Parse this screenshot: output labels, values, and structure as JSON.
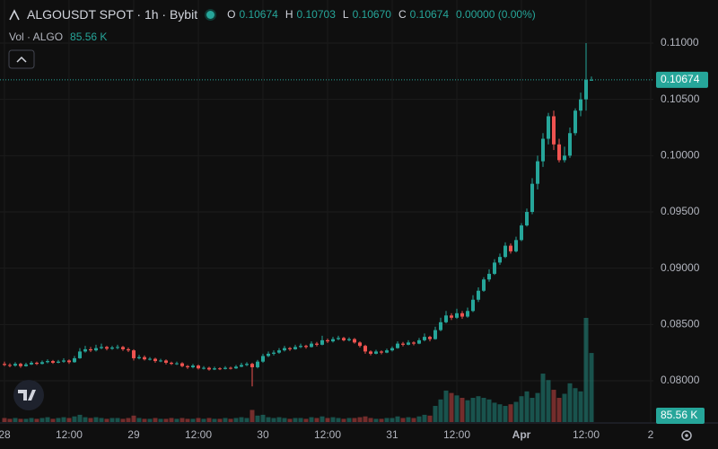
{
  "header": {
    "symbol": "ALGOUSDT SPOT · 1h · Bybit",
    "o_key": "O",
    "o": "0.10674",
    "h_key": "H",
    "h": "0.10703",
    "l_key": "L",
    "l": "0.10670",
    "c_key": "C",
    "c": "0.10674",
    "change": "0.00000 (0.00%)",
    "vol_title": "Vol · ALGO"
  },
  "chart_data": {
    "type": "candlestick",
    "colors": {
      "up": "#26a69a",
      "down": "#ef5350"
    },
    "grid": true,
    "volume_label": "85.56 K",
    "ylim": [
      0.07633,
      0.11383
    ],
    "yticks": [
      {
        "value": 0.08,
        "label": "0.08000"
      },
      {
        "value": 0.085,
        "label": "0.08500"
      },
      {
        "value": 0.09,
        "label": "0.09000"
      },
      {
        "value": 0.095,
        "label": "0.09500"
      },
      {
        "value": 0.1,
        "label": "0.10000"
      },
      {
        "value": 0.105,
        "label": "0.10500"
      },
      {
        "value": 0.11,
        "label": "0.11000"
      }
    ],
    "xlim": [
      -0.83,
      120.5
    ],
    "xticks": [
      {
        "value": 0,
        "label": "28"
      },
      {
        "value": 12,
        "label": "12:00"
      },
      {
        "value": 24,
        "label": "29"
      },
      {
        "value": 36,
        "label": "12:00"
      },
      {
        "value": 48,
        "label": "30"
      },
      {
        "value": 60,
        "label": "12:00"
      },
      {
        "value": 72,
        "label": "31"
      },
      {
        "value": 84,
        "label": "12:00"
      },
      {
        "value": 96,
        "label": "Apr"
      },
      {
        "value": 108,
        "label": "12:00"
      },
      {
        "value": 120,
        "label": "2"
      }
    ],
    "candles": [
      [
        0.0815,
        0.0817,
        0.0813,
        0.0814,
        5
      ],
      [
        0.0814,
        0.08155,
        0.0812,
        0.08135,
        4
      ],
      [
        0.08135,
        0.08165,
        0.08125,
        0.0815,
        5
      ],
      [
        0.0815,
        0.0816,
        0.08115,
        0.0813,
        4
      ],
      [
        0.0813,
        0.0816,
        0.08125,
        0.08145,
        4
      ],
      [
        0.08145,
        0.08175,
        0.0814,
        0.0816,
        5
      ],
      [
        0.0816,
        0.0817,
        0.0814,
        0.0815,
        4
      ],
      [
        0.0815,
        0.0818,
        0.08145,
        0.08165,
        5
      ],
      [
        0.08165,
        0.0819,
        0.08155,
        0.08175,
        6
      ],
      [
        0.08175,
        0.08185,
        0.0815,
        0.0816,
        4
      ],
      [
        0.0816,
        0.08185,
        0.08155,
        0.0817,
        5
      ],
      [
        0.0817,
        0.082,
        0.0816,
        0.0818,
        6
      ],
      [
        0.0818,
        0.0819,
        0.0815,
        0.08165,
        5
      ],
      [
        0.08165,
        0.0822,
        0.0816,
        0.082,
        7
      ],
      [
        0.082,
        0.0829,
        0.08195,
        0.0826,
        9
      ],
      [
        0.0826,
        0.0831,
        0.0825,
        0.0828,
        6
      ],
      [
        0.0828,
        0.083,
        0.08255,
        0.0827,
        5
      ],
      [
        0.0827,
        0.0832,
        0.0826,
        0.0829,
        6
      ],
      [
        0.0829,
        0.0833,
        0.0828,
        0.083,
        5
      ],
      [
        0.083,
        0.0831,
        0.0827,
        0.08285,
        4
      ],
      [
        0.08285,
        0.0831,
        0.08275,
        0.08295,
        5
      ],
      [
        0.08295,
        0.0832,
        0.0828,
        0.083,
        5
      ],
      [
        0.083,
        0.0831,
        0.08265,
        0.0828,
        4
      ],
      [
        0.0828,
        0.08295,
        0.08255,
        0.0827,
        5
      ],
      [
        0.0827,
        0.0828,
        0.0818,
        0.082,
        8
      ],
      [
        0.082,
        0.0823,
        0.0819,
        0.0821,
        5
      ],
      [
        0.0821,
        0.08225,
        0.0818,
        0.0819,
        4
      ],
      [
        0.0819,
        0.0821,
        0.0818,
        0.08195,
        4
      ],
      [
        0.08195,
        0.08205,
        0.0816,
        0.08175,
        5
      ],
      [
        0.08175,
        0.08195,
        0.08165,
        0.0818,
        4
      ],
      [
        0.0818,
        0.0819,
        0.08145,
        0.0816,
        4
      ],
      [
        0.0816,
        0.0817,
        0.0814,
        0.0815,
        5
      ],
      [
        0.0815,
        0.0817,
        0.0814,
        0.08155,
        4
      ],
      [
        0.08155,
        0.08165,
        0.0812,
        0.0813,
        5
      ],
      [
        0.0813,
        0.0814,
        0.08105,
        0.0812,
        4
      ],
      [
        0.0812,
        0.0815,
        0.0811,
        0.08135,
        4
      ],
      [
        0.08135,
        0.08145,
        0.081,
        0.0811,
        5
      ],
      [
        0.0811,
        0.0813,
        0.081,
        0.08115,
        4
      ],
      [
        0.08115,
        0.08125,
        0.0809,
        0.081,
        5
      ],
      [
        0.081,
        0.08125,
        0.08095,
        0.0811,
        4
      ],
      [
        0.0811,
        0.0812,
        0.08095,
        0.08105,
        4
      ],
      [
        0.08105,
        0.0813,
        0.081,
        0.08115,
        5
      ],
      [
        0.08115,
        0.08125,
        0.081,
        0.0811,
        4
      ],
      [
        0.0811,
        0.0814,
        0.08105,
        0.08125,
        5
      ],
      [
        0.08125,
        0.0816,
        0.0812,
        0.0814,
        6
      ],
      [
        0.0814,
        0.08165,
        0.0813,
        0.0815,
        5
      ],
      [
        0.0815,
        0.0816,
        0.0795,
        0.0812,
        15
      ],
      [
        0.0812,
        0.08185,
        0.0811,
        0.0817,
        8
      ],
      [
        0.0817,
        0.0824,
        0.0816,
        0.0822,
        9
      ],
      [
        0.0822,
        0.0826,
        0.0821,
        0.0824,
        6
      ],
      [
        0.0824,
        0.0827,
        0.08225,
        0.0825,
        5
      ],
      [
        0.0825,
        0.0829,
        0.0824,
        0.0827,
        6
      ],
      [
        0.0827,
        0.0831,
        0.0826,
        0.0829,
        5
      ],
      [
        0.0829,
        0.083,
        0.08265,
        0.0828,
        4
      ],
      [
        0.0828,
        0.0832,
        0.08275,
        0.083,
        5
      ],
      [
        0.083,
        0.0833,
        0.0829,
        0.0831,
        5
      ],
      [
        0.0831,
        0.0832,
        0.08285,
        0.083,
        4
      ],
      [
        0.083,
        0.0835,
        0.08295,
        0.0833,
        6
      ],
      [
        0.0833,
        0.08345,
        0.08305,
        0.0832,
        5
      ],
      [
        0.0832,
        0.084,
        0.08315,
        0.0836,
        7
      ],
      [
        0.0836,
        0.08375,
        0.08335,
        0.0835,
        5
      ],
      [
        0.0835,
        0.0839,
        0.0834,
        0.0837,
        6
      ],
      [
        0.0837,
        0.084,
        0.0836,
        0.0838,
        5
      ],
      [
        0.0838,
        0.0839,
        0.0835,
        0.0836,
        4
      ],
      [
        0.0836,
        0.08385,
        0.0835,
        0.0837,
        5
      ],
      [
        0.0837,
        0.0838,
        0.0833,
        0.0834,
        5
      ],
      [
        0.0834,
        0.0835,
        0.08295,
        0.0831,
        6
      ],
      [
        0.0831,
        0.0832,
        0.0824,
        0.0826,
        7
      ],
      [
        0.0826,
        0.0827,
        0.08225,
        0.0824,
        5
      ],
      [
        0.0824,
        0.08275,
        0.08235,
        0.0826,
        4
      ],
      [
        0.0826,
        0.0827,
        0.08235,
        0.0825,
        4
      ],
      [
        0.0825,
        0.08285,
        0.08245,
        0.0827,
        5
      ],
      [
        0.0827,
        0.08305,
        0.0826,
        0.0829,
        5
      ],
      [
        0.0829,
        0.0835,
        0.08285,
        0.0833,
        7
      ],
      [
        0.0833,
        0.08345,
        0.08305,
        0.0832,
        5
      ],
      [
        0.0832,
        0.0836,
        0.08315,
        0.0834,
        6
      ],
      [
        0.0834,
        0.0835,
        0.08315,
        0.0833,
        5
      ],
      [
        0.0833,
        0.0838,
        0.08325,
        0.0836,
        7
      ],
      [
        0.0836,
        0.0842,
        0.0835,
        0.0839,
        9
      ],
      [
        0.0839,
        0.084,
        0.0835,
        0.0837,
        8
      ],
      [
        0.0837,
        0.0848,
        0.08365,
        0.0845,
        20
      ],
      [
        0.0845,
        0.0856,
        0.0844,
        0.0852,
        28
      ],
      [
        0.0852,
        0.0862,
        0.0851,
        0.0858,
        39
      ],
      [
        0.0858,
        0.086,
        0.0854,
        0.0856,
        36
      ],
      [
        0.0856,
        0.0864,
        0.0855,
        0.086,
        33
      ],
      [
        0.086,
        0.0862,
        0.0855,
        0.0857,
        30
      ],
      [
        0.0857,
        0.0865,
        0.0856,
        0.0862,
        27
      ],
      [
        0.0862,
        0.0876,
        0.0861,
        0.0872,
        30
      ],
      [
        0.0872,
        0.0883,
        0.087,
        0.088,
        32
      ],
      [
        0.088,
        0.0892,
        0.0879,
        0.089,
        30
      ],
      [
        0.089,
        0.0899,
        0.0888,
        0.0895,
        28
      ],
      [
        0.0895,
        0.0908,
        0.0894,
        0.0905,
        24
      ],
      [
        0.0905,
        0.0913,
        0.0903,
        0.091,
        22
      ],
      [
        0.091,
        0.0923,
        0.0909,
        0.092,
        20
      ],
      [
        0.092,
        0.0922,
        0.0913,
        0.0915,
        22
      ],
      [
        0.0915,
        0.0928,
        0.0914,
        0.0925,
        25
      ],
      [
        0.0925,
        0.094,
        0.0924,
        0.0938,
        32
      ],
      [
        0.0938,
        0.0953,
        0.0937,
        0.095,
        38
      ],
      [
        0.095,
        0.098,
        0.0948,
        0.0975,
        30
      ],
      [
        0.0975,
        0.1,
        0.097,
        0.0995,
        36
      ],
      [
        0.0995,
        0.102,
        0.099,
        0.1015,
        60
      ],
      [
        0.1015,
        0.1038,
        0.101,
        0.1035,
        52
      ],
      [
        0.1035,
        0.104,
        0.1005,
        0.101,
        40
      ],
      [
        0.101,
        0.1015,
        0.0994,
        0.0996,
        30
      ],
      [
        0.0996,
        0.1008,
        0.0994,
        0.1,
        35
      ],
      [
        0.1,
        0.1025,
        0.0998,
        0.102,
        48
      ],
      [
        0.102,
        0.1042,
        0.1018,
        0.104,
        42
      ],
      [
        0.104,
        0.1056,
        0.1035,
        0.105,
        38
      ],
      [
        0.105,
        0.11,
        0.104,
        0.10674,
        129
      ],
      [
        0.10674,
        0.10703,
        0.1067,
        0.10674,
        85.56
      ]
    ]
  }
}
